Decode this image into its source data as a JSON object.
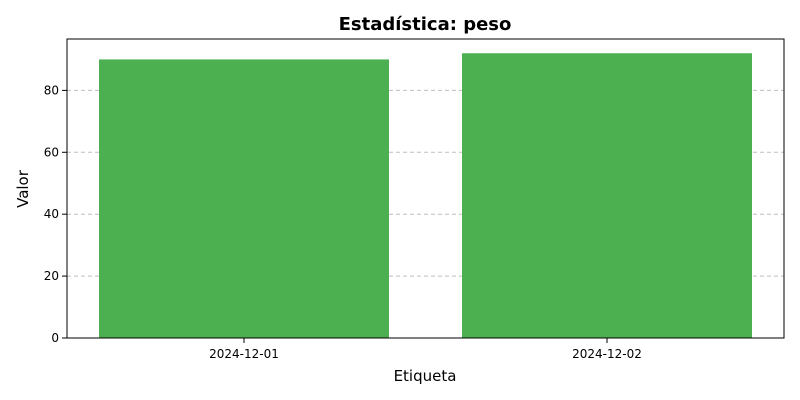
{
  "chart_data": {
    "type": "bar",
    "title": "Estadística: peso",
    "xlabel": "Etiqueta",
    "ylabel": "Valor",
    "categories": [
      "2024-12-01",
      "2024-12-02"
    ],
    "values": [
      90,
      92
    ],
    "ylim": [
      0,
      96.6
    ],
    "yticks": [
      0,
      20,
      40,
      60,
      80
    ],
    "grid": "y-dashed",
    "bar_color": "#4caf50"
  }
}
